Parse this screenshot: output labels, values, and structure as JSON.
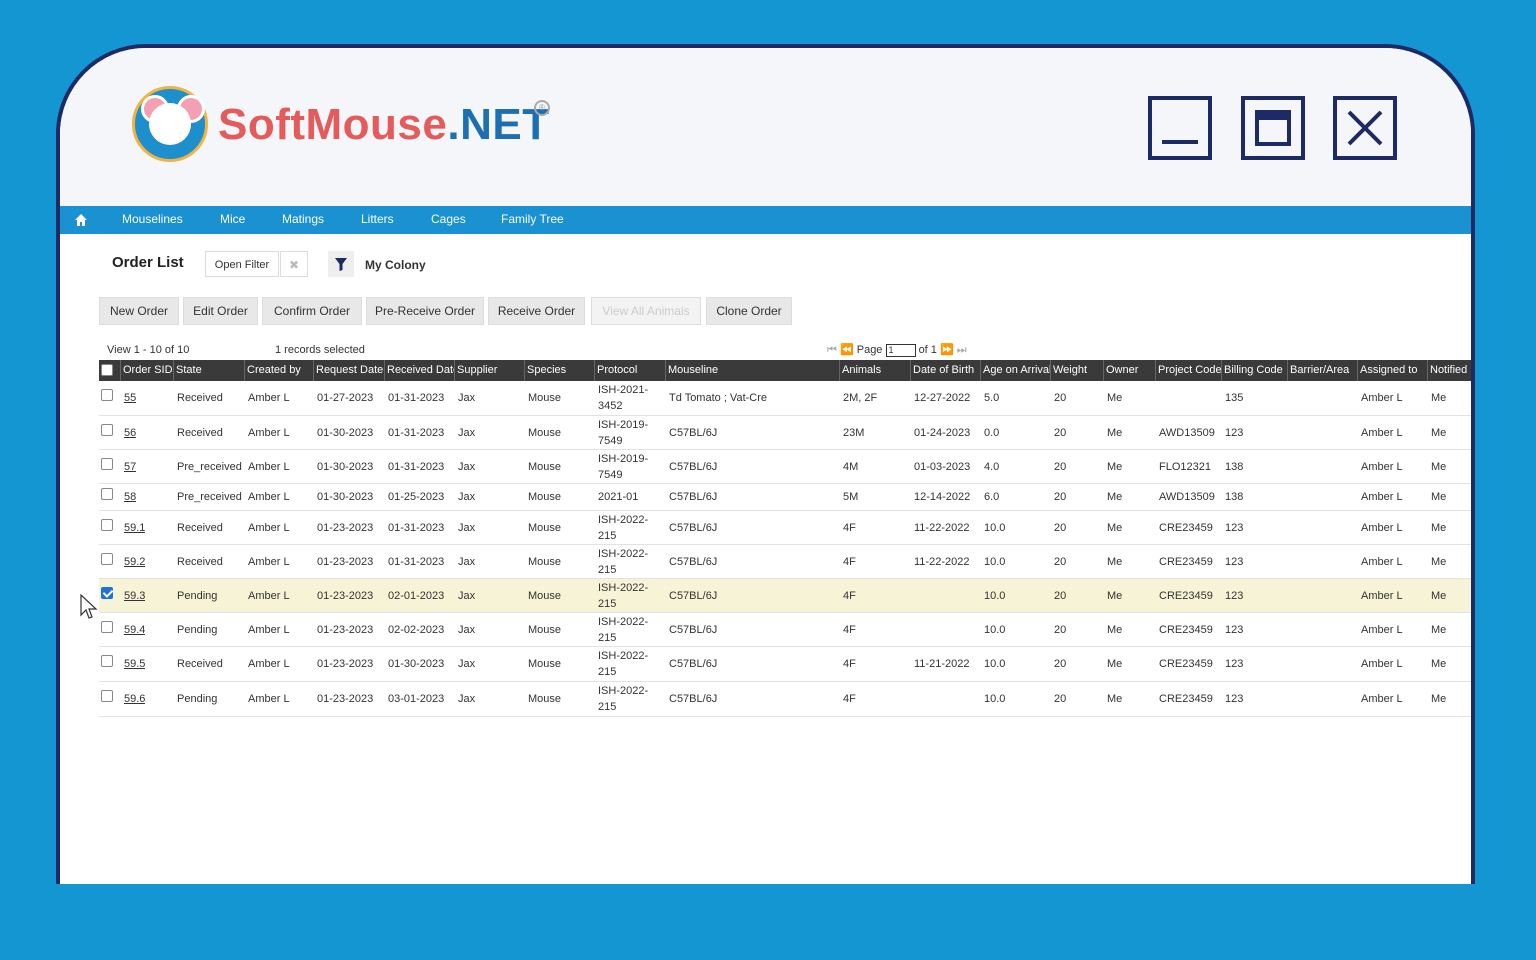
{
  "logo": {
    "soft": "SoftMouse",
    "net": ".NET"
  },
  "nav": {
    "items": [
      "Mouselines",
      "Mice",
      "Matings",
      "Litters",
      "Cages",
      "Family Tree"
    ]
  },
  "page": {
    "title": "Order List",
    "open_filter": "Open Filter",
    "clear_filter": "✖",
    "colony": "My Colony"
  },
  "toolbar": {
    "new_order": "New Order",
    "edit_order": "Edit Order",
    "confirm_order": "Confirm Order",
    "pre_receive_order": "Pre-Receive Order",
    "receive_order": "Receive Order",
    "view_all_animals": "View All Animals",
    "clone_order": "Clone Order"
  },
  "info": {
    "view": "View 1 - 10 of 10",
    "selected": "1 records selected",
    "page_label": "Page",
    "page_value": "1",
    "of_label": "of 1"
  },
  "columns": [
    "Order SID",
    "State",
    "Created by",
    "Request Date",
    "Received Date",
    "Supplier",
    "Species",
    "Protocol",
    "Mouseline",
    "Animals",
    "Date of Birth",
    "Age on Arrival",
    "Weight",
    "Owner",
    "Project Code",
    "Billing Code",
    "Barrier/Area",
    "Assigned to",
    "Notified"
  ],
  "rows": [
    {
      "sid": "55",
      "state": "Received",
      "created": "Amber L",
      "req": "01-27-2023",
      "rec": "01-31-2023",
      "supplier": "Jax",
      "species": "Mouse",
      "p1": "ISH-2021-",
      "p2": "3452",
      "mouseline": "Td Tomato ; Vat-Cre",
      "animals": "2M, 2F",
      "dob": "12-27-2022",
      "age": "5.0",
      "weight": "20",
      "owner": "Me",
      "project": "",
      "billing": "135",
      "barrier": "",
      "assigned": "Amber L",
      "notified": "Me",
      "checked": false
    },
    {
      "sid": "56",
      "state": "Received",
      "created": "Amber L",
      "req": "01-30-2023",
      "rec": "01-31-2023",
      "supplier": "Jax",
      "species": "Mouse",
      "p1": "ISH-2019-",
      "p2": "7549",
      "mouseline": "C57BL/6J",
      "animals": "23M",
      "dob": "01-24-2023",
      "age": "0.0",
      "weight": "20",
      "owner": "Me",
      "project": "AWD13509",
      "billing": "123",
      "barrier": "",
      "assigned": "Amber L",
      "notified": "Me",
      "checked": false
    },
    {
      "sid": "57",
      "state": "Pre_received",
      "created": "Amber L",
      "req": "01-30-2023",
      "rec": "01-31-2023",
      "supplier": "Jax",
      "species": "Mouse",
      "p1": "ISH-2019-",
      "p2": "7549",
      "mouseline": "C57BL/6J",
      "animals": "4M",
      "dob": "01-03-2023",
      "age": "4.0",
      "weight": "20",
      "owner": "Me",
      "project": "FLO12321",
      "billing": "138",
      "barrier": "",
      "assigned": "Amber L",
      "notified": "Me",
      "checked": false
    },
    {
      "sid": "58",
      "state": "Pre_received",
      "created": "Amber L",
      "req": "01-30-2023",
      "rec": "01-25-2023",
      "supplier": "Jax",
      "species": "Mouse",
      "p1": "2021-01",
      "p2": "",
      "mouseline": "C57BL/6J",
      "animals": "5M",
      "dob": "12-14-2022",
      "age": "6.0",
      "weight": "20",
      "owner": "Me",
      "project": "AWD13509",
      "billing": "138",
      "barrier": "",
      "assigned": "Amber L",
      "notified": "Me",
      "checked": false
    },
    {
      "sid": "59.1",
      "state": "Received",
      "created": "Amber L",
      "req": "01-23-2023",
      "rec": "01-31-2023",
      "supplier": "Jax",
      "species": "Mouse",
      "p1": "ISH-2022-",
      "p2": "215",
      "mouseline": "C57BL/6J",
      "animals": "4F",
      "dob": "11-22-2022",
      "age": "10.0",
      "weight": "20",
      "owner": "Me",
      "project": "CRE23459",
      "billing": "123",
      "barrier": "",
      "assigned": "Amber L",
      "notified": "Me",
      "checked": false
    },
    {
      "sid": "59.2",
      "state": "Received",
      "created": "Amber L",
      "req": "01-23-2023",
      "rec": "01-31-2023",
      "supplier": "Jax",
      "species": "Mouse",
      "p1": "ISH-2022-",
      "p2": "215",
      "mouseline": "C57BL/6J",
      "animals": "4F",
      "dob": "11-22-2022",
      "age": "10.0",
      "weight": "20",
      "owner": "Me",
      "project": "CRE23459",
      "billing": "123",
      "barrier": "",
      "assigned": "Amber L",
      "notified": "Me",
      "checked": false
    },
    {
      "sid": "59.3",
      "state": "Pending",
      "created": "Amber L",
      "req": "01-23-2023",
      "rec": "02-01-2023",
      "supplier": "Jax",
      "species": "Mouse",
      "p1": "ISH-2022-",
      "p2": "215",
      "mouseline": "C57BL/6J",
      "animals": "4F",
      "dob": "",
      "age": "10.0",
      "weight": "20",
      "owner": "Me",
      "project": "CRE23459",
      "billing": "123",
      "barrier": "",
      "assigned": "Amber L",
      "notified": "Me",
      "checked": true
    },
    {
      "sid": "59.4",
      "state": "Pending",
      "created": "Amber L",
      "req": "01-23-2023",
      "rec": "02-02-2023",
      "supplier": "Jax",
      "species": "Mouse",
      "p1": "ISH-2022-",
      "p2": "215",
      "mouseline": "C57BL/6J",
      "animals": "4F",
      "dob": "",
      "age": "10.0",
      "weight": "20",
      "owner": "Me",
      "project": "CRE23459",
      "billing": "123",
      "barrier": "",
      "assigned": "Amber L",
      "notified": "Me",
      "checked": false
    },
    {
      "sid": "59.5",
      "state": "Received",
      "created": "Amber L",
      "req": "01-23-2023",
      "rec": "01-30-2023",
      "supplier": "Jax",
      "species": "Mouse",
      "p1": "ISH-2022-",
      "p2": "215",
      "mouseline": "C57BL/6J",
      "animals": "4F",
      "dob": "11-21-2022",
      "age": "10.0",
      "weight": "20",
      "owner": "Me",
      "project": "CRE23459",
      "billing": "123",
      "barrier": "",
      "assigned": "Amber L",
      "notified": "Me",
      "checked": false
    },
    {
      "sid": "59.6",
      "state": "Pending",
      "created": "Amber L",
      "req": "01-23-2023",
      "rec": "03-01-2023",
      "supplier": "Jax",
      "species": "Mouse",
      "p1": "ISH-2022-",
      "p2": "215",
      "mouseline": "C57BL/6J",
      "animals": "4F",
      "dob": "",
      "age": "10.0",
      "weight": "20",
      "owner": "Me",
      "project": "CRE23459",
      "billing": "123",
      "barrier": "",
      "assigned": "Amber L",
      "notified": "Me",
      "checked": false
    }
  ],
  "colors": {
    "background": "#1496d2",
    "navbar": "#1a91d1",
    "frame": "#1c2a66",
    "header": "#3a3a3a",
    "selected_row": "#f7f3d6",
    "logo_red": "#e55a5a",
    "logo_blue": "#1c6fb2"
  },
  "icons": {
    "home": "home-icon",
    "filter": "funnel-icon",
    "minimize": "minimize-icon",
    "maximize": "maximize-icon",
    "close": "close-icon",
    "cursor": "mouse-pointer-icon"
  }
}
